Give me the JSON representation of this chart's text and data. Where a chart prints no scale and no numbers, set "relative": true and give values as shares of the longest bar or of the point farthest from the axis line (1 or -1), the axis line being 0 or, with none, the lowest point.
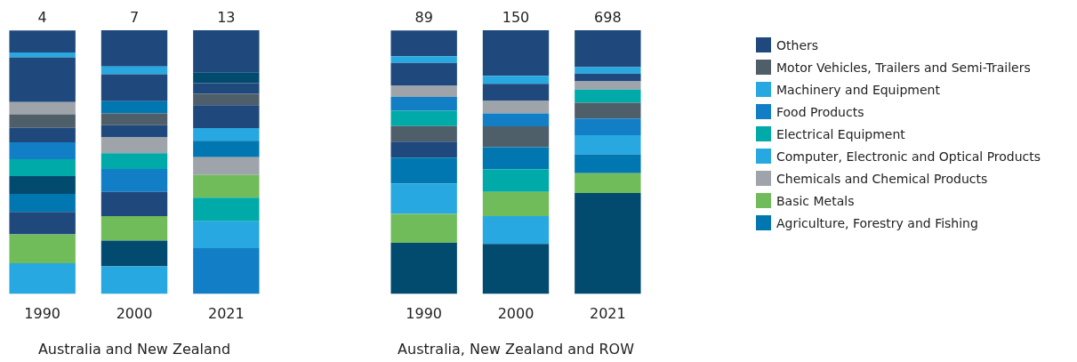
{
  "chart_data": [
    {
      "type": "bar",
      "stacked": true,
      "relative": true,
      "xlabel": "Australia and New Zealand",
      "categories": [
        "1990",
        "2000",
        "2021"
      ],
      "annotations": [
        {
          "text": "4",
          "x": "1990",
          "y": 1
        },
        {
          "text": "7",
          "x": "2000",
          "y": 1
        },
        {
          "text": "13",
          "x": "2021",
          "y": 1
        }
      ],
      "series": [
        {
          "values": [
            0.117,
            0.105,
            0.174
          ],
          "colors": [
            "#27a8e0",
            "#27a8e0",
            "#117ec6"
          ]
        },
        {
          "values": [
            0.109,
            0.098,
            0.102
          ],
          "colors": [
            "#71bc5a",
            "#034b6e",
            "#27a8e0"
          ]
        },
        {
          "values": [
            0.085,
            0.092,
            0.089
          ],
          "colors": [
            "#1f497d",
            "#71bc5a",
            "#00aaa8"
          ]
        },
        {
          "values": [
            0.069,
            0.092,
            0.086
          ],
          "colors": [
            "#0077b0",
            "#1f497d",
            "#71bc5a"
          ]
        },
        {
          "values": [
            0.067,
            0.087,
            0.068
          ],
          "colors": [
            "#034b6e",
            "#117ec6",
            "#9ea4aa"
          ]
        },
        {
          "values": [
            0.064,
            0.06,
            0.062
          ],
          "colors": [
            "#00aaa8",
            "#00aaa8",
            "#0077b0"
          ]
        },
        {
          "values": [
            0.064,
            0.06,
            0.048
          ],
          "colors": [
            "#117ec6",
            "#9ea4aa",
            "#27a8e0"
          ]
        },
        {
          "values": [
            0.055,
            0.046,
            0.087
          ],
          "colors": [
            "#1f497d",
            "#1f497d",
            "#1f497d"
          ]
        },
        {
          "values": [
            0.051,
            0.045,
            0.043
          ],
          "colors": [
            "#4f5f69",
            "#4f5f69",
            "#4f5f69"
          ]
        },
        {
          "values": [
            0.047,
            0.046,
            0.04
          ],
          "colors": [
            "#9ea4aa",
            "#0077b0",
            "#1f497d"
          ]
        },
        {
          "values": [
            0.169,
            0.102,
            0.042
          ],
          "colors": [
            "#1f497d",
            "#1f497d",
            "#034b6e"
          ]
        },
        {
          "values": [
            0.019,
            0.03,
            0.159
          ],
          "colors": [
            "#27a8e0",
            "#27a8e0",
            "#1f497d"
          ]
        },
        {
          "values": [
            0.083,
            0.137,
            null
          ],
          "colors": [
            "#1f497d",
            "#1f497d",
            null
          ]
        }
      ]
    },
    {
      "type": "bar",
      "stacked": true,
      "relative": true,
      "xlabel": "Australia, New Zealand and ROW",
      "categories": [
        "1990",
        "2000",
        "2021"
      ],
      "legend": "right",
      "annotations": [
        {
          "text": "89",
          "x": "1990",
          "y": 1
        },
        {
          "text": "150",
          "x": "2000",
          "y": 1
        },
        {
          "text": "698",
          "x": "2021",
          "y": 1
        }
      ],
      "series": [
        {
          "values": [
            0.194,
            0.19,
            0.383
          ],
          "colors": [
            "#034b6e",
            "#034b6e",
            "#034b6e"
          ]
        },
        {
          "values": [
            0.11,
            0.105,
            0.075
          ],
          "colors": [
            "#71bc5a",
            "#27a8e0",
            "#71bc5a"
          ]
        },
        {
          "values": [
            0.115,
            0.092,
            0.072
          ],
          "colors": [
            "#27a8e0",
            "#71bc5a",
            "#0077b0"
          ]
        },
        {
          "values": [
            0.098,
            0.085,
            0.072
          ],
          "colors": [
            "#0077b0",
            "#00aaa8",
            "#27a8e0"
          ]
        },
        {
          "values": [
            0.061,
            0.085,
            0.063
          ],
          "colors": [
            "#1f497d",
            "#0077b0",
            "#117ec6"
          ]
        },
        {
          "values": [
            0.059,
            0.079,
            0.06
          ],
          "colors": [
            "#4f5f69",
            "#4f5f69",
            "#4f5f69"
          ]
        },
        {
          "values": [
            0.058,
            0.049,
            0.05
          ],
          "colors": [
            "#00aaa8",
            "#117ec6",
            "#00aaa8"
          ]
        },
        {
          "values": [
            0.052,
            0.047,
            0.031
          ],
          "colors": [
            "#117ec6",
            "#9ea4aa",
            "#9ea4aa"
          ]
        },
        {
          "values": [
            0.042,
            0.065,
            0.03
          ],
          "colors": [
            "#9ea4aa",
            "#1f497d",
            "#1f497d"
          ]
        },
        {
          "values": [
            0.087,
            0.03,
            0.024
          ],
          "colors": [
            "#1f497d",
            "#27a8e0",
            "#27a8e0"
          ]
        },
        {
          "values": [
            0.025,
            0.173,
            0.14
          ],
          "colors": [
            "#27a8e0",
            "#1f497d",
            "#1f497d"
          ]
        },
        {
          "values": [
            0.098,
            null,
            null
          ],
          "colors": [
            "#1f497d",
            null,
            null
          ]
        },
        {
          "name": "Others",
          "color": "#1f497d",
          "values": [
            null,
            null,
            null
          ]
        },
        {
          "name": "Motor Vehicles, Trailers and Semi-Trailers",
          "color": "#4f5f69",
          "values": [
            null,
            null,
            null
          ]
        },
        {
          "name": "Machinery and Equipment",
          "color": "#27a8e0",
          "values": [
            null,
            null,
            null
          ]
        },
        {
          "name": "Food Products",
          "color": "#117ec6",
          "values": [
            null,
            null,
            null
          ]
        },
        {
          "name": "Electrical Equipment",
          "color": "#00aaa8",
          "values": [
            null,
            null,
            null
          ]
        },
        {
          "name": "Computer, Electronic and Optical Products",
          "color": "#27a8e0",
          "values": [
            null,
            null,
            null
          ]
        },
        {
          "name": "Chemicals and Chemical Products",
          "color": "#9ea4aa",
          "values": [
            null,
            null,
            null
          ]
        },
        {
          "name": "Basic Metals",
          "color": "#71bc5a",
          "values": [
            null,
            null,
            null
          ]
        },
        {
          "name": "Agriculture, Forestry and Fishing",
          "color": "#0077b0",
          "values": [
            null,
            null,
            null
          ]
        }
      ]
    }
  ]
}
